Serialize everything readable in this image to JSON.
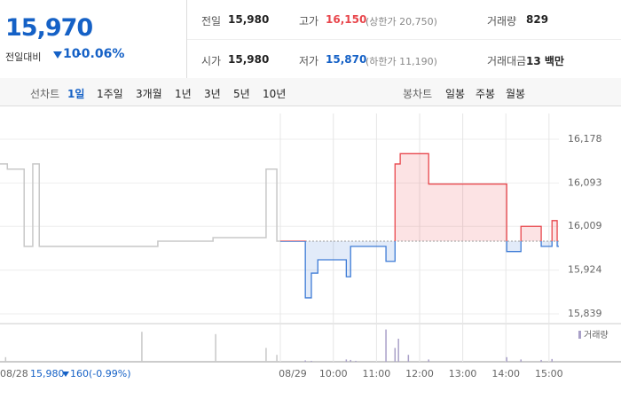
{
  "header": {
    "price": "15,970",
    "change_label": "전일대비",
    "change": "10",
    "change_rate": "-0.06%"
  },
  "stats": [
    {
      "label": "전일",
      "value": "15,980"
    },
    {
      "label": "고가",
      "value": "16,150",
      "note": "(상한가 20,750)"
    },
    {
      "label": "거래량",
      "value": "829"
    },
    {
      "label": "시가",
      "value": "15,980"
    },
    {
      "label": "저가",
      "value": "15,870",
      "note": "(하한가 11,190)"
    },
    {
      "label": "거래대금",
      "value": "13 백만"
    }
  ],
  "tabs": {
    "line_label": "선차트",
    "line": [
      "1일",
      "1주일",
      "3개월",
      "1년",
      "3년",
      "5년",
      "10년"
    ],
    "candle_label": "봉차트",
    "candle": [
      "일봉",
      "주봉",
      "월봉"
    ]
  },
  "chart": {
    "type": "line",
    "step": true,
    "xlim": [
      2.27,
      15.23
    ],
    "ylim": [
      15820,
      16228
    ],
    "yticks": [
      {
        "value": 16178,
        "label": "16,178"
      },
      {
        "value": 16093,
        "label": "16,093"
      },
      {
        "value": 16009,
        "label": "16,009"
      },
      {
        "value": 15924,
        "label": "15,924"
      },
      {
        "value": 15839,
        "label": "15,839"
      }
    ],
    "xticks": [
      {
        "value": 8.77,
        "label": "08/29"
      },
      {
        "value": 10,
        "label": "10:00"
      },
      {
        "value": 11,
        "label": "11:00"
      },
      {
        "value": 12,
        "label": "12:00"
      },
      {
        "value": 13,
        "label": "13:00"
      },
      {
        "value": 14,
        "label": "14:00"
      },
      {
        "value": 15,
        "label": "15:00"
      }
    ],
    "baseline": 15980,
    "up_color": "#e8464c",
    "down_color": "#3d7bd6",
    "prev_color": "#c8c8c8",
    "prev": {
      "x": [
        2.27,
        2.44,
        2.83,
        3.03,
        3.18,
        5.93,
        7.21,
        8.44,
        8.69,
        8.77
      ],
      "values": [
        16130,
        16120,
        15970,
        16130,
        15970,
        15980,
        15987,
        16120,
        15980,
        15980
      ]
    },
    "today": {
      "x": [
        8.77,
        9.35,
        9.49,
        9.64,
        10.3,
        10.4,
        11.22,
        11.43,
        11.55,
        12.21,
        14.02,
        14.35,
        14.82,
        15.07,
        15.19,
        15.23
      ],
      "values": [
        15980,
        15870,
        15918,
        15944,
        15911,
        15970,
        15941,
        16130,
        16150,
        16091,
        15960,
        16009,
        15970,
        16020,
        15970,
        15970
      ]
    },
    "volume": {
      "name": "거래량",
      "color": "#a9a0c8",
      "ylim": [
        0,
        150
      ],
      "x": [
        2.4,
        5.56,
        7.27,
        8.44,
        8.69,
        9.35,
        9.49,
        10.3,
        10.4,
        10.52,
        11.22,
        11.43,
        11.51,
        11.74,
        12.21,
        14.02,
        14.35,
        14.82,
        15.07
      ],
      "values": [
        20,
        130,
        120,
        60,
        30,
        6,
        4,
        10,
        8,
        4,
        140,
        60,
        100,
        30,
        10,
        20,
        10,
        8,
        12
      ]
    }
  },
  "footer": {
    "date": "08/28",
    "price": "15,980",
    "change": "160",
    "rate": "(-0.99%)"
  }
}
